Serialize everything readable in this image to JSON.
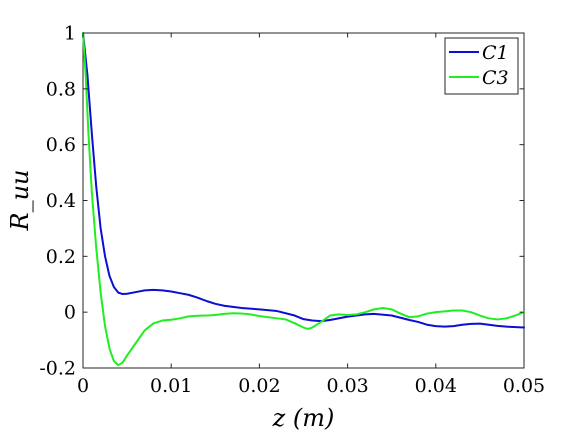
{
  "chart_data": {
    "type": "line",
    "title": "",
    "xlabel": "z (m)",
    "ylabel": "R_uu",
    "xlim": [
      0,
      0.05
    ],
    "ylim": [
      -0.2,
      1
    ],
    "x_ticks": [
      0,
      0.01,
      0.02,
      0.03,
      0.04,
      0.05
    ],
    "x_tick_labels": [
      "0",
      "0.01",
      "0.02",
      "0.03",
      "0.04",
      "0.05"
    ],
    "y_ticks": [
      -0.2,
      0,
      0.2,
      0.4,
      0.6,
      0.8,
      1
    ],
    "y_tick_labels": [
      "-0.2",
      "0",
      "0.2",
      "0.4",
      "0.6",
      "0.8",
      "1"
    ],
    "grid": false,
    "legend_position": "top-right",
    "series": [
      {
        "name": "C1",
        "color": "#0a0fd1",
        "points": [
          [
            0,
            1.0
          ],
          [
            0.0005,
            0.85
          ],
          [
            0.001,
            0.64
          ],
          [
            0.0015,
            0.45
          ],
          [
            0.002,
            0.3
          ],
          [
            0.0025,
            0.2
          ],
          [
            0.003,
            0.13
          ],
          [
            0.0035,
            0.09
          ],
          [
            0.004,
            0.07
          ],
          [
            0.0045,
            0.065
          ],
          [
            0.005,
            0.066
          ],
          [
            0.006,
            0.072
          ],
          [
            0.007,
            0.078
          ],
          [
            0.008,
            0.08
          ],
          [
            0.009,
            0.078
          ],
          [
            0.01,
            0.074
          ],
          [
            0.011,
            0.068
          ],
          [
            0.012,
            0.062
          ],
          [
            0.013,
            0.052
          ],
          [
            0.014,
            0.04
          ],
          [
            0.015,
            0.03
          ],
          [
            0.016,
            0.023
          ],
          [
            0.018,
            0.015
          ],
          [
            0.02,
            0.01
          ],
          [
            0.022,
            0.004
          ],
          [
            0.024,
            -0.012
          ],
          [
            0.025,
            -0.025
          ],
          [
            0.026,
            -0.03
          ],
          [
            0.027,
            -0.032
          ],
          [
            0.028,
            -0.028
          ],
          [
            0.03,
            -0.016
          ],
          [
            0.032,
            -0.008
          ],
          [
            0.033,
            -0.006
          ],
          [
            0.035,
            -0.012
          ],
          [
            0.036,
            -0.02
          ],
          [
            0.037,
            -0.028
          ],
          [
            0.038,
            -0.035
          ],
          [
            0.039,
            -0.045
          ],
          [
            0.04,
            -0.05
          ],
          [
            0.041,
            -0.052
          ],
          [
            0.042,
            -0.05
          ],
          [
            0.043,
            -0.045
          ],
          [
            0.044,
            -0.042
          ],
          [
            0.045,
            -0.041
          ],
          [
            0.046,
            -0.045
          ],
          [
            0.047,
            -0.049
          ],
          [
            0.048,
            -0.052
          ],
          [
            0.05,
            -0.055
          ]
        ]
      },
      {
        "name": "C3",
        "color": "#21ee21",
        "points": [
          [
            0,
            1.0
          ],
          [
            0.0003,
            0.85
          ],
          [
            0.0006,
            0.65
          ],
          [
            0.001,
            0.43
          ],
          [
            0.0015,
            0.23
          ],
          [
            0.002,
            0.07
          ],
          [
            0.0025,
            -0.05
          ],
          [
            0.003,
            -0.13
          ],
          [
            0.0035,
            -0.175
          ],
          [
            0.004,
            -0.19
          ],
          [
            0.0045,
            -0.18
          ],
          [
            0.005,
            -0.155
          ],
          [
            0.006,
            -0.11
          ],
          [
            0.007,
            -0.065
          ],
          [
            0.008,
            -0.04
          ],
          [
            0.009,
            -0.03
          ],
          [
            0.01,
            -0.027
          ],
          [
            0.011,
            -0.022
          ],
          [
            0.012,
            -0.015
          ],
          [
            0.013,
            -0.013
          ],
          [
            0.014,
            -0.012
          ],
          [
            0.015,
            -0.01
          ],
          [
            0.016,
            -0.006
          ],
          [
            0.017,
            -0.004
          ],
          [
            0.018,
            -0.005
          ],
          [
            0.019,
            -0.008
          ],
          [
            0.02,
            -0.014
          ],
          [
            0.021,
            -0.018
          ],
          [
            0.022,
            -0.022
          ],
          [
            0.023,
            -0.026
          ],
          [
            0.024,
            -0.04
          ],
          [
            0.025,
            -0.055
          ],
          [
            0.0255,
            -0.06
          ],
          [
            0.026,
            -0.055
          ],
          [
            0.027,
            -0.035
          ],
          [
            0.028,
            -0.012
          ],
          [
            0.029,
            -0.008
          ],
          [
            0.03,
            -0.01
          ],
          [
            0.031,
            -0.008
          ],
          [
            0.032,
            0.0
          ],
          [
            0.033,
            0.01
          ],
          [
            0.034,
            0.015
          ],
          [
            0.035,
            0.01
          ],
          [
            0.036,
            -0.005
          ],
          [
            0.037,
            -0.018
          ],
          [
            0.038,
            -0.015
          ],
          [
            0.039,
            -0.005
          ],
          [
            0.04,
            0.0
          ],
          [
            0.041,
            0.003
          ],
          [
            0.042,
            0.006
          ],
          [
            0.043,
            0.006
          ],
          [
            0.044,
            0.0
          ],
          [
            0.045,
            -0.012
          ],
          [
            0.046,
            -0.022
          ],
          [
            0.047,
            -0.026
          ],
          [
            0.048,
            -0.022
          ],
          [
            0.049,
            -0.012
          ],
          [
            0.05,
            0.0
          ]
        ]
      }
    ]
  }
}
